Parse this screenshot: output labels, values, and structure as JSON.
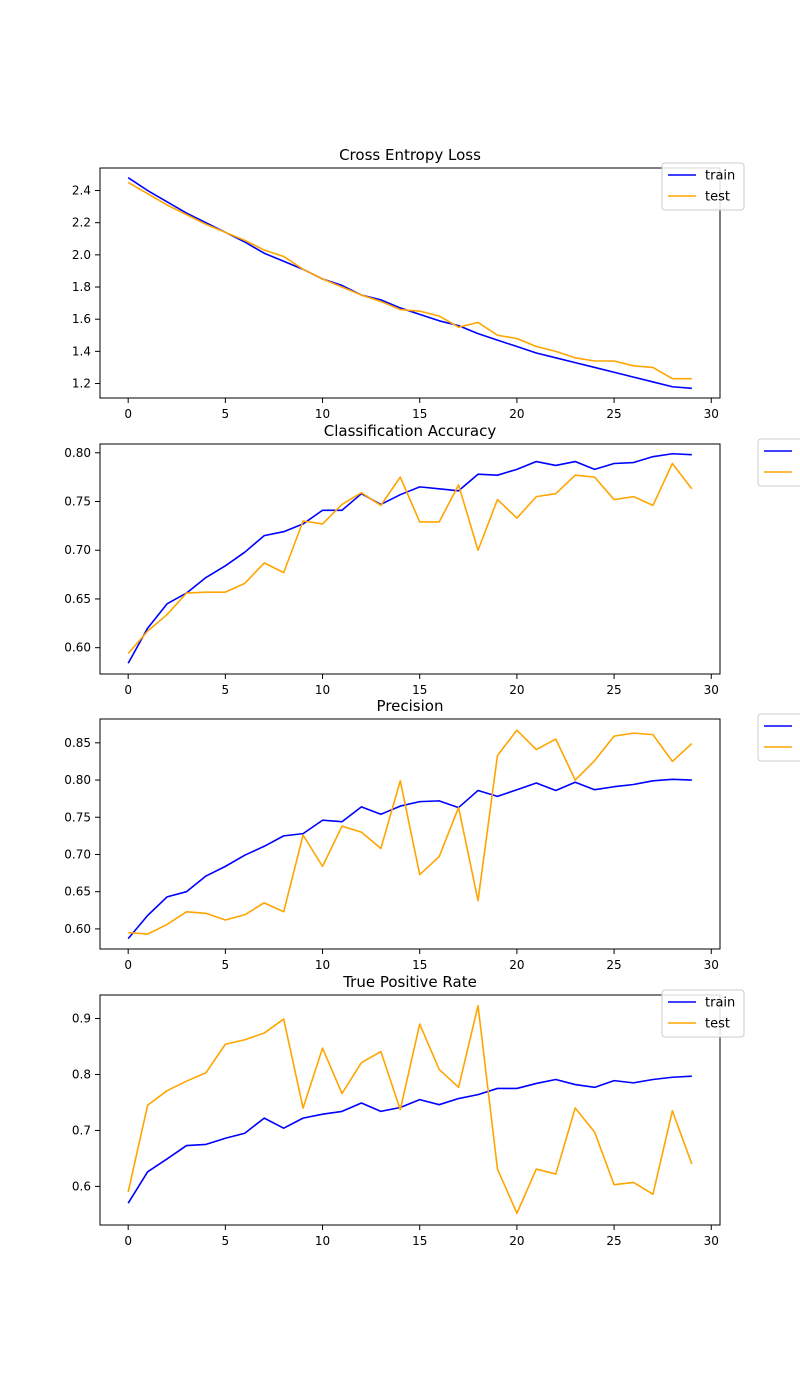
{
  "colors": {
    "train": "#0000ff",
    "test": "#ffa500",
    "frame": "#000000",
    "legend_border": "#cccccc"
  },
  "chart_data": [
    {
      "type": "line",
      "title": "Cross Entropy Loss",
      "xlim": [
        -1.45,
        30.45
      ],
      "ylim": [
        1.11,
        2.54
      ],
      "xticks": [
        0,
        5,
        10,
        15,
        20,
        25,
        30
      ],
      "yticks": [
        1.2,
        1.4,
        1.6,
        1.8,
        2.0,
        2.2,
        2.4
      ],
      "ytick_labels": [
        "1.2",
        "1.4",
        "1.6",
        "1.8",
        "2.0",
        "2.2",
        "2.4"
      ],
      "legend": {
        "placement": "top-right",
        "labels_visible": true
      },
      "x": [
        0,
        1,
        2,
        3,
        4,
        5,
        6,
        7,
        8,
        9,
        10,
        11,
        12,
        13,
        14,
        15,
        16,
        17,
        18,
        19,
        20,
        21,
        22,
        23,
        24,
        25,
        26,
        27,
        28,
        29
      ],
      "series": [
        {
          "name": "train",
          "color_key": "train",
          "values": [
            2.48,
            2.4,
            2.33,
            2.26,
            2.2,
            2.14,
            2.08,
            2.01,
            1.96,
            1.91,
            1.85,
            1.81,
            1.75,
            1.72,
            1.67,
            1.63,
            1.59,
            1.56,
            1.51,
            1.47,
            1.43,
            1.39,
            1.36,
            1.33,
            1.3,
            1.27,
            1.24,
            1.21,
            1.18,
            1.17
          ]
        },
        {
          "name": "test",
          "color_key": "test",
          "values": [
            2.45,
            2.38,
            2.31,
            2.25,
            2.19,
            2.14,
            2.09,
            2.03,
            1.99,
            1.91,
            1.85,
            1.8,
            1.75,
            1.71,
            1.66,
            1.65,
            1.62,
            1.55,
            1.58,
            1.5,
            1.48,
            1.43,
            1.4,
            1.36,
            1.34,
            1.34,
            1.31,
            1.3,
            1.23,
            1.23
          ]
        }
      ]
    },
    {
      "type": "line",
      "title": "Classification Accuracy",
      "xlim": [
        -1.45,
        30.45
      ],
      "ylim": [
        0.573,
        0.809
      ],
      "xticks": [
        0,
        5,
        10,
        15,
        20,
        25,
        30
      ],
      "yticks": [
        0.6,
        0.65,
        0.7,
        0.75,
        0.8
      ],
      "ytick_labels": [
        "0.60",
        "0.65",
        "0.70",
        "0.75",
        "0.80"
      ],
      "legend": {
        "placement": "outside-right",
        "labels_visible": false
      },
      "x": [
        0,
        1,
        2,
        3,
        4,
        5,
        6,
        7,
        8,
        9,
        10,
        11,
        12,
        13,
        14,
        15,
        16,
        17,
        18,
        19,
        20,
        21,
        22,
        23,
        24,
        25,
        26,
        27,
        28,
        29
      ],
      "series": [
        {
          "color_key": "train",
          "values": [
            0.584,
            0.62,
            0.645,
            0.656,
            0.672,
            0.684,
            0.698,
            0.715,
            0.719,
            0.727,
            0.741,
            0.741,
            0.758,
            0.747,
            0.757,
            0.765,
            0.763,
            0.761,
            0.778,
            0.777,
            0.783,
            0.791,
            0.787,
            0.791,
            0.783,
            0.789,
            0.79,
            0.796,
            0.799,
            0.798
          ]
        },
        {
          "color_key": "test",
          "values": [
            0.594,
            0.617,
            0.634,
            0.656,
            0.657,
            0.657,
            0.666,
            0.687,
            0.677,
            0.73,
            0.727,
            0.747,
            0.759,
            0.746,
            0.775,
            0.729,
            0.729,
            0.767,
            0.7,
            0.752,
            0.733,
            0.755,
            0.758,
            0.777,
            0.775,
            0.752,
            0.755,
            0.746,
            0.789,
            0.763
          ]
        }
      ]
    },
    {
      "type": "line",
      "title": "Precision",
      "xlim": [
        -1.45,
        30.45
      ],
      "ylim": [
        0.573,
        0.882
      ],
      "xticks": [
        0,
        5,
        10,
        15,
        20,
        25,
        30
      ],
      "yticks": [
        0.6,
        0.65,
        0.7,
        0.75,
        0.8,
        0.85
      ],
      "ytick_labels": [
        "0.60",
        "0.65",
        "0.70",
        "0.75",
        "0.80",
        "0.85"
      ],
      "legend": {
        "placement": "outside-right",
        "labels_visible": false
      },
      "x": [
        0,
        1,
        2,
        3,
        4,
        5,
        6,
        7,
        8,
        9,
        10,
        11,
        12,
        13,
        14,
        15,
        16,
        17,
        18,
        19,
        20,
        21,
        22,
        23,
        24,
        25,
        26,
        27,
        28,
        29
      ],
      "series": [
        {
          "color_key": "train",
          "values": [
            0.587,
            0.618,
            0.643,
            0.65,
            0.671,
            0.684,
            0.699,
            0.711,
            0.725,
            0.728,
            0.746,
            0.744,
            0.764,
            0.754,
            0.765,
            0.771,
            0.772,
            0.763,
            0.786,
            0.778,
            0.787,
            0.796,
            0.786,
            0.797,
            0.787,
            0.791,
            0.794,
            0.799,
            0.801,
            0.8
          ]
        },
        {
          "color_key": "test",
          "values": [
            0.595,
            0.593,
            0.606,
            0.623,
            0.621,
            0.612,
            0.619,
            0.635,
            0.623,
            0.726,
            0.684,
            0.738,
            0.73,
            0.708,
            0.799,
            0.673,
            0.697,
            0.763,
            0.638,
            0.833,
            0.867,
            0.841,
            0.855,
            0.8,
            0.826,
            0.859,
            0.863,
            0.861,
            0.825,
            0.849
          ]
        }
      ]
    },
    {
      "type": "line",
      "title": "True Positive Rate",
      "xlim": [
        -1.45,
        30.45
      ],
      "ylim": [
        0.531,
        0.942
      ],
      "xticks": [
        0,
        5,
        10,
        15,
        20,
        25,
        30
      ],
      "yticks": [
        0.6,
        0.7,
        0.8,
        0.9
      ],
      "ytick_labels": [
        "0.6",
        "0.7",
        "0.8",
        "0.9"
      ],
      "legend": {
        "placement": "top-right",
        "labels_visible": true
      },
      "x": [
        0,
        1,
        2,
        3,
        4,
        5,
        6,
        7,
        8,
        9,
        10,
        11,
        12,
        13,
        14,
        15,
        16,
        17,
        18,
        19,
        20,
        21,
        22,
        23,
        24,
        25,
        26,
        27,
        28,
        29
      ],
      "series": [
        {
          "name": "train",
          "color_key": "train",
          "values": [
            0.57,
            0.626,
            0.649,
            0.673,
            0.675,
            0.686,
            0.695,
            0.722,
            0.704,
            0.722,
            0.729,
            0.734,
            0.749,
            0.734,
            0.741,
            0.755,
            0.746,
            0.757,
            0.764,
            0.775,
            0.775,
            0.784,
            0.791,
            0.782,
            0.777,
            0.789,
            0.785,
            0.791,
            0.795,
            0.797
          ]
        },
        {
          "name": "test",
          "color_key": "test",
          "values": [
            0.59,
            0.745,
            0.771,
            0.788,
            0.803,
            0.854,
            0.862,
            0.874,
            0.899,
            0.74,
            0.847,
            0.766,
            0.821,
            0.841,
            0.737,
            0.89,
            0.809,
            0.777,
            0.923,
            0.631,
            0.552,
            0.631,
            0.622,
            0.74,
            0.697,
            0.603,
            0.607,
            0.586,
            0.735,
            0.64
          ]
        }
      ]
    }
  ]
}
